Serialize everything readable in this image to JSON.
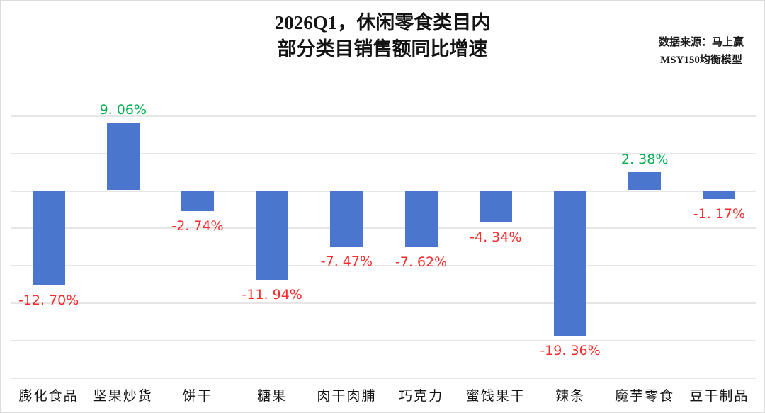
{
  "title": {
    "line1": "2026Q1，休闲零食类目内",
    "line2": "部分类目销售额同比增速"
  },
  "source": {
    "line1": "数据来源：马上赢",
    "line2": "MSY150均衡模型"
  },
  "chart_data": {
    "type": "bar",
    "title": "2026Q1，休闲零食类目内部分类目销售额同比增速",
    "categories": [
      "膨化食品",
      "坚果炒货",
      "饼干",
      "糖果",
      "肉干肉脯",
      "巧克力",
      "蜜饯果干",
      "辣条",
      "魔芋零食",
      "豆干制品"
    ],
    "values": [
      -12.7,
      9.06,
      -2.74,
      -11.94,
      -7.47,
      -7.62,
      -4.34,
      -19.36,
      2.38,
      -1.17
    ],
    "display_labels": [
      "-12. 70%",
      "9. 06%",
      "-2. 74%",
      "-11. 94%",
      "-7. 47%",
      "-7. 62%",
      "-4. 34%",
      "-19. 36%",
      "2. 38%",
      "-1. 17%"
    ],
    "xlabel": "",
    "ylabel": "",
    "ylim": [
      -25,
      12
    ],
    "gridlines": [
      10,
      5,
      0,
      -5,
      -10,
      -15,
      -20,
      -25
    ],
    "grid": true,
    "legend": false,
    "colors": {
      "bar": "#4B76CD",
      "positive_label": "#00B050",
      "negative_label": "#FB2B2B",
      "gridline": "#E6E6E6",
      "text": "#141414"
    }
  }
}
